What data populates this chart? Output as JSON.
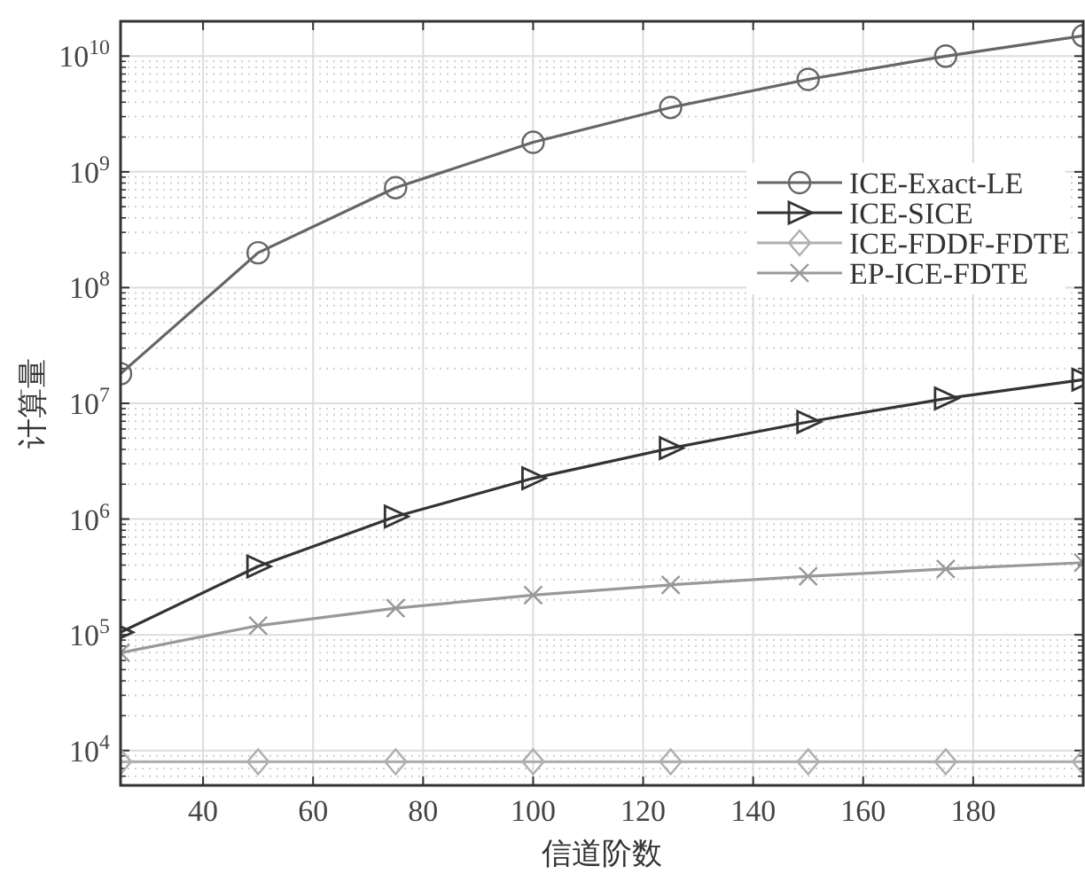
{
  "chart_data": {
    "type": "line",
    "xlabel": "信道阶数",
    "ylabel": "计算量",
    "x": [
      25,
      50,
      75,
      100,
      125,
      150,
      175,
      200
    ],
    "series": [
      {
        "name": "ICE-Exact-LE",
        "color": "#666666",
        "marker": "circle",
        "values": [
          18000000.0,
          200000000.0,
          730000000.0,
          1800000000.0,
          3600000000.0,
          6300000000.0,
          10000000000.0,
          15000000000.0
        ]
      },
      {
        "name": "ICE-SICE",
        "color": "#333333",
        "marker": "triangle",
        "values": [
          105000.0,
          390000.0,
          1050000.0,
          2250000.0,
          4100000.0,
          6900000.0,
          11000000.0,
          16000000.0
        ]
      },
      {
        "name": "ICE-FDDF-FDTE",
        "color": "#b0b0b0",
        "marker": "diamond",
        "values": [
          8000,
          8000,
          8000,
          8000,
          8000,
          8000,
          8000,
          8000
        ]
      },
      {
        "name": "EP-ICE-FDTE",
        "color": "#999999",
        "marker": "cross",
        "values": [
          70000.0,
          120000.0,
          170000.0,
          220000.0,
          270000.0,
          320000.0,
          370000.0,
          420000.0
        ]
      }
    ],
    "log": "y",
    "xlim": [
      25,
      200
    ],
    "ylim": [
      5000,
      20000000000.0
    ],
    "xticks": [
      40,
      60,
      80,
      100,
      120,
      140,
      160,
      180
    ],
    "yticks": [
      {
        "value": 10000,
        "label": "10$^{4}$"
      },
      {
        "value": 100000,
        "label": "10$^{5}$"
      },
      {
        "value": 1000000,
        "label": "10$^{6}$"
      },
      {
        "value": 10000000,
        "label": "10$^{7}$"
      },
      {
        "value": 100000000,
        "label": "10$^{8}$"
      },
      {
        "value": 1000000000,
        "label": "10$^{9}$"
      },
      {
        "value": 10000000000,
        "label": "10$^{10}$"
      }
    ],
    "grid": true,
    "legend": "top right",
    "line_style": "solid"
  }
}
